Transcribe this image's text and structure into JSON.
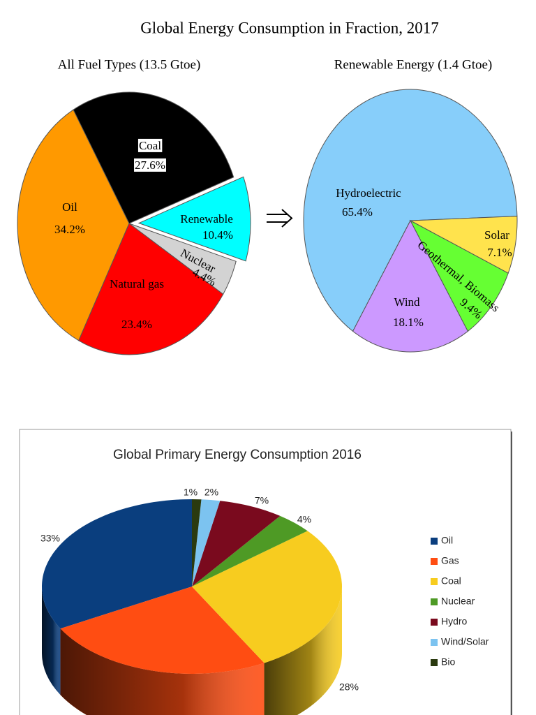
{
  "title": "Global Energy Consumption in Fraction, 2017",
  "chart_data": [
    {
      "type": "pie",
      "title": "All Fuel Types (13.5 Gtoe)",
      "categories": [
        "Coal",
        "Renewable",
        "Nuclear",
        "Natural gas",
        "Oil"
      ],
      "values": [
        27.6,
        10.4,
        4.4,
        23.4,
        34.2
      ],
      "value_labels": [
        "27.6%",
        "10.4%",
        "4.4%",
        "23.4%",
        "34.2%"
      ],
      "colors": [
        "#000000",
        "#00ffff",
        "#d3d3d3",
        "#ff0000",
        "#ff9900"
      ]
    },
    {
      "type": "pie",
      "title": "Renewable Energy (1.4 Gtoe)",
      "categories": [
        "Hydroelectric",
        "Solar",
        "Geothermal, Biomass",
        "Wind"
      ],
      "values": [
        65.4,
        7.1,
        9.4,
        18.1
      ],
      "value_labels": [
        "65.4%",
        "7.1%",
        "9.4%",
        "18.1%"
      ],
      "colors": [
        "#87cefa",
        "#ffe34d",
        "#66ff33",
        "#cc99ff"
      ]
    },
    {
      "type": "pie3d",
      "title": "Global Primary Energy Consumption 2016",
      "categories": [
        "Oil",
        "Gas",
        "Coal",
        "Nuclear",
        "Hydro",
        "Wind/Solar",
        "Bio"
      ],
      "values": [
        33,
        25,
        28,
        4,
        7,
        2,
        1
      ],
      "value_labels": [
        "33%",
        null,
        "28%",
        "4%",
        "7%",
        "2%",
        "1%"
      ],
      "colors": [
        "#0a3e7e",
        "#ff4d12",
        "#f7cc1f",
        "#4e9a25",
        "#7a0a1e",
        "#7cc3f0",
        "#2a3a0f"
      ],
      "legend": "right"
    }
  ]
}
